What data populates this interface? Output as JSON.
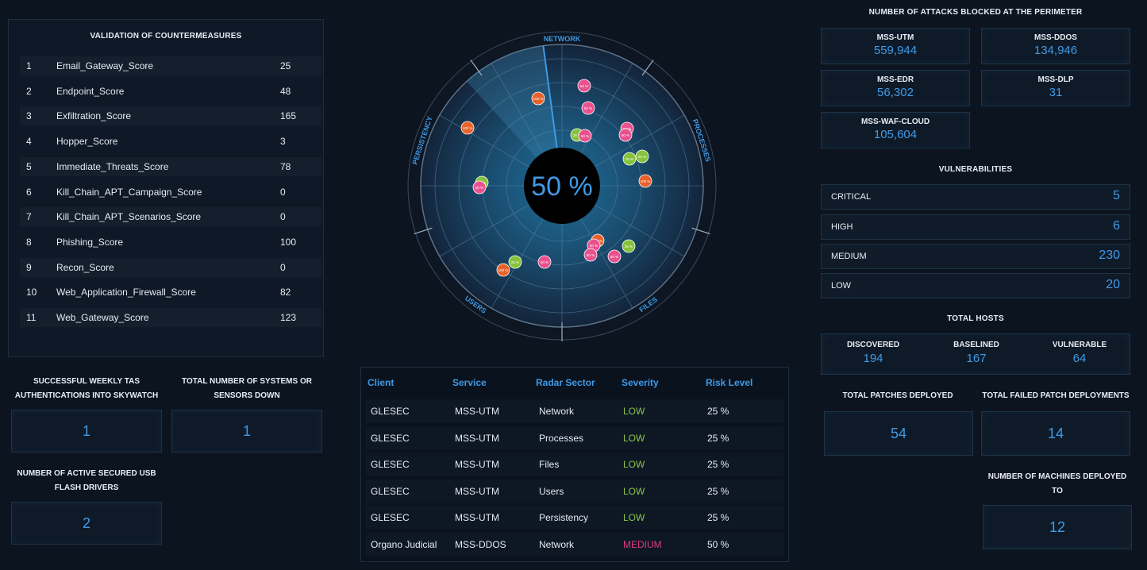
{
  "countermeasures": {
    "title": "VALIDATION OF COUNTERMEASURES",
    "rows": [
      {
        "num": "1",
        "name": "Email_Gateway_Score",
        "score": "25"
      },
      {
        "num": "2",
        "name": "Endpoint_Score",
        "score": "48"
      },
      {
        "num": "3",
        "name": "Exfiltration_Score",
        "score": "165"
      },
      {
        "num": "4",
        "name": "Hopper_Score",
        "score": "3"
      },
      {
        "num": "5",
        "name": "Immediate_Threats_Score",
        "score": "78"
      },
      {
        "num": "6",
        "name": "Kill_Chain_APT_Campaign_Score",
        "score": "0"
      },
      {
        "num": "7",
        "name": "Kill_Chain_APT_Scenarios_Score",
        "score": "0"
      },
      {
        "num": "8",
        "name": "Phishing_Score",
        "score": "100"
      },
      {
        "num": "9",
        "name": "Recon_Score",
        "score": "0"
      },
      {
        "num": "10",
        "name": "Web_Application_Firewall_Score",
        "score": "82"
      },
      {
        "num": "11",
        "name": "Web_Gateway_Score",
        "score": "123"
      }
    ]
  },
  "left_stats": {
    "tas_label": "SUCCESSFUL WEEKLY TAS AUTHENTICATIONS INTO SKYWATCH",
    "tas_value": "1",
    "down_label": "TOTAL NUMBER OF SYSTEMS OR SENSORS DOWN",
    "down_value": "1",
    "usb_label": "NUMBER OF ACTIVE SECURED USB FLASH DRIVERS",
    "usb_value": "2"
  },
  "radar": {
    "center_text": "50 %",
    "sectors": [
      "NETWORK",
      "PROCESSES",
      "FILES",
      "USERS",
      "PERSISTENCY"
    ],
    "colors": {
      "pink": "#e9528f",
      "orange": "#e8622c",
      "green": "#86c33c",
      "center": "#000000"
    },
    "blip_label_pink": "50 %",
    "blip_label_orange": "100 %",
    "blip_label_green": "25 %"
  },
  "table": {
    "headers": [
      "Client",
      "Service",
      "Radar Sector",
      "Severity",
      "Risk Level"
    ],
    "rows": [
      {
        "client": "GLESEC",
        "service": "MSS-UTM",
        "sector": "Network",
        "severity": "LOW",
        "risk": "25 %"
      },
      {
        "client": "GLESEC",
        "service": "MSS-UTM",
        "sector": "Processes",
        "severity": "LOW",
        "risk": "25 %"
      },
      {
        "client": "GLESEC",
        "service": "MSS-UTM",
        "sector": "Files",
        "severity": "LOW",
        "risk": "25 %"
      },
      {
        "client": "GLESEC",
        "service": "MSS-UTM",
        "sector": "Users",
        "severity": "LOW",
        "risk": "25 %"
      },
      {
        "client": "GLESEC",
        "service": "MSS-UTM",
        "sector": "Persistency",
        "severity": "LOW",
        "risk": "25 %"
      },
      {
        "client": "Organo Judicial",
        "service": "MSS-DDOS",
        "sector": "Network",
        "severity": "MEDIUM",
        "risk": "50 %"
      }
    ]
  },
  "attacks": {
    "title": "NUMBER OF ATTACKS BLOCKED AT THE PERIMETER",
    "utm": {
      "label": "MSS-UTM",
      "value": "559,944"
    },
    "ddos": {
      "label": "MSS-DDOS",
      "value": "134,946"
    },
    "edr": {
      "label": "MSS-EDR",
      "value": "56,302"
    },
    "dlp": {
      "label": "MSS-DLP",
      "value": "31"
    },
    "waf": {
      "label": "MSS-WAF-CLOUD",
      "value": "105,604"
    }
  },
  "vulnerabilities": {
    "title": "VULNERABILITIES",
    "critical": {
      "label": "CRITICAL",
      "value": "5"
    },
    "high": {
      "label": "HIGH",
      "value": "6"
    },
    "medium": {
      "label": "MEDIUM",
      "value": "230"
    },
    "low": {
      "label": "LOW",
      "value": "20"
    }
  },
  "hosts": {
    "title": "TOTAL HOSTS",
    "discovered": {
      "label": "DISCOVERED",
      "value": "194"
    },
    "baselined": {
      "label": "BASELINED",
      "value": "167"
    },
    "vulnerable": {
      "label": "VULNERABLE",
      "value": "64"
    }
  },
  "patches": {
    "deployed_label": "TOTAL PATCHES DEPLOYED",
    "deployed_value": "54",
    "failed_label": "TOTAL FAILED PATCH DEPLOYMENTS",
    "failed_value": "14",
    "machines_label": "NUMBER OF MACHINES DEPLOYED TO",
    "machines_value": "12"
  }
}
